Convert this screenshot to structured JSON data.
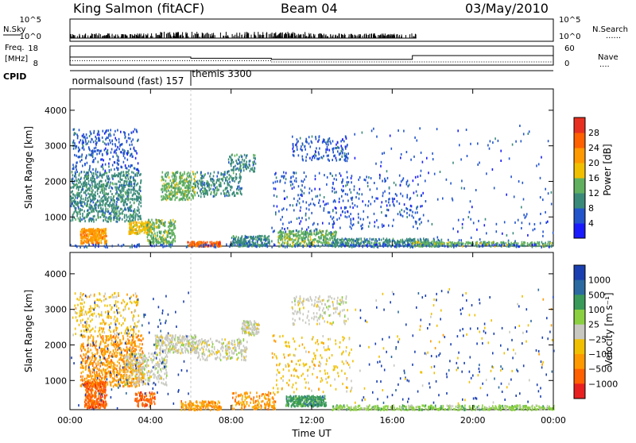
{
  "header": {
    "station": "King Salmon (fitACF)",
    "beam": "Beam 04",
    "date": "03/May/2010"
  },
  "top_labels": {
    "nsky": "N.Sky",
    "freq": "Freq.",
    "freq_unit": "[MHz]",
    "cpid": "CPID",
    "nsearch": "N.Search",
    "nave": "Nave",
    "dots": "......",
    "nave_dots": "...."
  },
  "cpid_labels": [
    {
      "text": "normalsound (fast) 157",
      "time_h": 0.1
    },
    {
      "text": "themis 3300",
      "time_h": 6.05
    }
  ],
  "nsky_axis": {
    "ticks": [
      "10^5",
      "10^0"
    ]
  },
  "nsearch_axis": {
    "ticks": [
      "10^5",
      "10^0"
    ]
  },
  "freq_axis": {
    "ticks": [
      "18",
      "8"
    ],
    "range": [
      8,
      18
    ]
  },
  "nave_axis": {
    "ticks": [
      "60",
      "0"
    ],
    "range": [
      0,
      60
    ]
  },
  "freq_series": {
    "x": [
      0,
      6.0,
      6.0,
      10.0,
      10.0,
      17.0,
      17.0,
      24
    ],
    "y": [
      12.2,
      12.2,
      11.6,
      11.6,
      11.0,
      11.0,
      13.0,
      13.0
    ]
  },
  "nave_series": {
    "x": [
      0,
      10.0,
      10.0,
      24
    ],
    "y": [
      14,
      14,
      10,
      10
    ]
  },
  "time_axis": {
    "label": "Time UT",
    "range": [
      0,
      24
    ],
    "ticks": [
      "00:00",
      "04:00",
      "08:00",
      "12:00",
      "16:00",
      "20:00",
      "00:00"
    ],
    "tick_values": [
      0,
      4,
      8,
      12,
      16,
      20,
      24
    ]
  },
  "cpid_change_time": 6.0,
  "chart_data": [
    {
      "type": "heatmap",
      "name": "power",
      "ylabel": "Slant Range [km]",
      "ylim": [
        180,
        4600
      ],
      "yticks": [
        "1000",
        "2000",
        "3000",
        "4000"
      ],
      "ytick_values": [
        1000,
        2000,
        3000,
        4000
      ],
      "colorbar_label": "Power [dB]",
      "colorbar_ticks": [
        "4",
        "8",
        "12",
        "16",
        "20",
        "24",
        "28"
      ],
      "colorbar_range": [
        0,
        30
      ],
      "colorbar_colors": [
        "#1a1aff",
        "#2255cc",
        "#3a8a7a",
        "#60b060",
        "#f0c000",
        "#ff9900",
        "#ff6000",
        "#e83020"
      ],
      "regions": [
        {
          "t": [
            0.0,
            3.5
          ],
          "r": [
            900,
            2300
          ],
          "level": 2,
          "n": 900
        },
        {
          "t": [
            0.1,
            3.4
          ],
          "r": [
            2300,
            3500
          ],
          "level": 1,
          "n": 300
        },
        {
          "t": [
            0.5,
            1.8
          ],
          "r": [
            280,
            700
          ],
          "level": 5,
          "n": 260
        },
        {
          "t": [
            2.9,
            4.0
          ],
          "r": [
            550,
            900
          ],
          "level": 4,
          "n": 150
        },
        {
          "t": [
            3.8,
            5.2
          ],
          "r": [
            280,
            950
          ],
          "level": 3,
          "n": 220
        },
        {
          "t": [
            4.5,
            6.2
          ],
          "r": [
            1500,
            2300
          ],
          "level": 3,
          "n": 320
        },
        {
          "t": [
            6.2,
            8.5
          ],
          "r": [
            1600,
            2300
          ],
          "level": 2,
          "n": 220
        },
        {
          "t": [
            7.8,
            9.2
          ],
          "r": [
            2300,
            2800
          ],
          "level": 2,
          "n": 100
        },
        {
          "t": [
            5.8,
            7.5
          ],
          "r": [
            200,
            330
          ],
          "level": 6,
          "n": 120
        },
        {
          "t": [
            8.0,
            10.0
          ],
          "r": [
            200,
            500
          ],
          "level": 2,
          "n": 200
        },
        {
          "t": [
            10.3,
            13.2
          ],
          "r": [
            200,
            650
          ],
          "level": 3,
          "n": 320
        },
        {
          "t": [
            10.0,
            14.0
          ],
          "r": [
            600,
            2300
          ],
          "level": 1,
          "n": 200
        },
        {
          "t": [
            11.0,
            13.8
          ],
          "r": [
            2600,
            3300
          ],
          "level": 1,
          "n": 150
        },
        {
          "t": [
            13.0,
            18.5
          ],
          "r": [
            200,
            420
          ],
          "level": 2,
          "n": 340
        },
        {
          "t": [
            13.0,
            17.5
          ],
          "r": [
            700,
            2200
          ],
          "level": 1,
          "n": 160
        },
        {
          "t": [
            14.0,
            24.0
          ],
          "r": [
            200,
            3600
          ],
          "level": 1,
          "n": 200
        },
        {
          "t": [
            17.0,
            24.0
          ],
          "r": [
            200,
            330
          ],
          "level": 3,
          "n": 260
        },
        {
          "t": [
            0.0,
            24.0
          ],
          "r": [
            180,
            260
          ],
          "level": 1,
          "n": 220
        }
      ]
    },
    {
      "type": "heatmap",
      "name": "velocity",
      "ylabel": "Slant Range [km]",
      "ylim": [
        180,
        4600
      ],
      "yticks": [
        "1000",
        "2000",
        "3000",
        "4000"
      ],
      "ytick_values": [
        1000,
        2000,
        3000,
        4000
      ],
      "colorbar_label": "Velocity [m s⁻¹]",
      "colorbar_ticks": [
        "1000",
        "500",
        "100",
        "25",
        "−25",
        "−100",
        "−500",
        "−1000"
      ],
      "colorbar_colors": [
        "#1a3fb0",
        "#2a6aa0",
        "#3a9a5a",
        "#8ad040",
        "#c8c8c0",
        "#f0c000",
        "#ff9900",
        "#ff6000",
        "#e82020"
      ],
      "regions": [
        {
          "t": [
            0.5,
            3.6
          ],
          "r": [
            850,
            2300
          ],
          "level": 6,
          "n": 800
        },
        {
          "t": [
            0.1,
            3.4
          ],
          "r": [
            2300,
            3500
          ],
          "level": 5,
          "n": 260
        },
        {
          "t": [
            0.7,
            1.8
          ],
          "r": [
            250,
            1000
          ],
          "level": 7,
          "n": 320
        },
        {
          "t": [
            2.7,
            4.8
          ],
          "r": [
            900,
            1800
          ],
          "level": 4,
          "n": 280
        },
        {
          "t": [
            3.2,
            4.2
          ],
          "r": [
            300,
            700
          ],
          "level": 7,
          "n": 100
        },
        {
          "t": [
            4.2,
            6.3
          ],
          "r": [
            1800,
            2300
          ],
          "level": 4,
          "n": 260
        },
        {
          "t": [
            6.3,
            8.8
          ],
          "r": [
            1600,
            2200
          ],
          "level": 4,
          "n": 200
        },
        {
          "t": [
            8.5,
            9.4
          ],
          "r": [
            2300,
            2700
          ],
          "level": 4,
          "n": 100
        },
        {
          "t": [
            5.5,
            7.5
          ],
          "r": [
            200,
            450
          ],
          "level": 6,
          "n": 140
        },
        {
          "t": [
            8.0,
            10.2
          ],
          "r": [
            220,
            700
          ],
          "level": 6,
          "n": 160
        },
        {
          "t": [
            10.7,
            12.7
          ],
          "r": [
            300,
            600
          ],
          "level": 2,
          "n": 260
        },
        {
          "t": [
            10.0,
            14.0
          ],
          "r": [
            700,
            2300
          ],
          "level": 5,
          "n": 200
        },
        {
          "t": [
            11.0,
            13.8
          ],
          "r": [
            2600,
            3400
          ],
          "level": 4,
          "n": 160
        },
        {
          "t": [
            13.0,
            24.0
          ],
          "r": [
            200,
            330
          ],
          "level": 3,
          "n": 420
        },
        {
          "t": [
            14.0,
            24.0
          ],
          "r": [
            350,
            3600
          ],
          "level": 0,
          "n": 160
        },
        {
          "t": [
            14.0,
            24.0
          ],
          "r": [
            350,
            3600
          ],
          "level": 5,
          "n": 80
        },
        {
          "t": [
            0.0,
            6.0
          ],
          "r": [
            200,
            3500
          ],
          "level": 0,
          "n": 120
        }
      ]
    }
  ]
}
